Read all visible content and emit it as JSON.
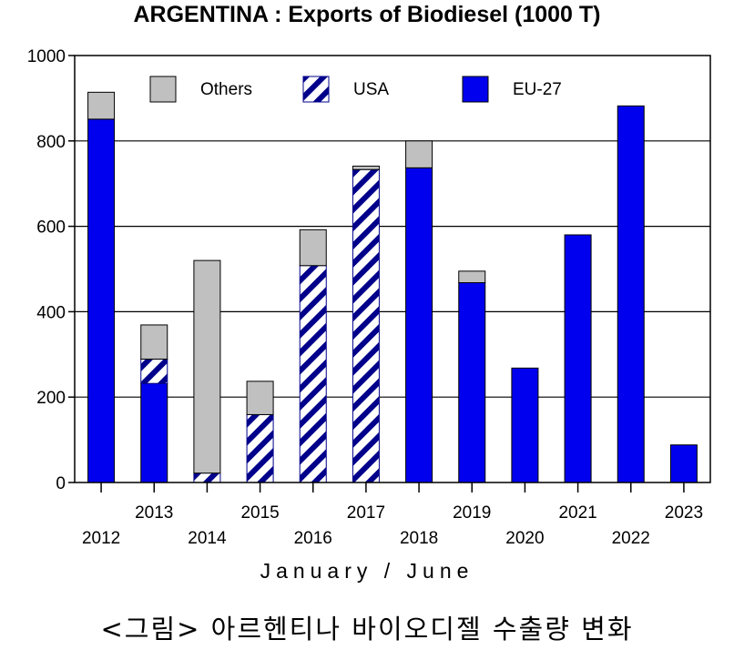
{
  "chart_data": {
    "type": "bar",
    "stacked": true,
    "title": "ARGENTINA : Exports of Biodiesel (1000 T)",
    "xlabel": "January / June",
    "ylabel": "",
    "ylim": [
      0,
      1000
    ],
    "yticks": [
      0,
      200,
      400,
      600,
      800,
      1000
    ],
    "grid": true,
    "legend_position": "top",
    "categories": [
      "2012",
      "2013",
      "2014",
      "2015",
      "2016",
      "2017",
      "2018",
      "2019",
      "2020",
      "2021",
      "2022",
      "2023"
    ],
    "series": [
      {
        "name": "EU-27",
        "color": "#0000ee",
        "pattern": "solid",
        "values": [
          851,
          232,
          0,
          0,
          0,
          0,
          737,
          468,
          268,
          580,
          882,
          88
        ]
      },
      {
        "name": "USA",
        "color": "#00008b",
        "pattern": "diagonal-hatch",
        "values": [
          0,
          57,
          22,
          159,
          508,
          733,
          0,
          0,
          0,
          0,
          0,
          0
        ]
      },
      {
        "name": "Others",
        "color": "#c0c0c0",
        "pattern": "solid",
        "values": [
          63,
          80,
          498,
          78,
          84,
          8,
          63,
          27,
          0,
          0,
          0,
          0
        ]
      }
    ]
  },
  "caption": "<그림> 아르헨티나 바이오디젤 수출량 변화"
}
